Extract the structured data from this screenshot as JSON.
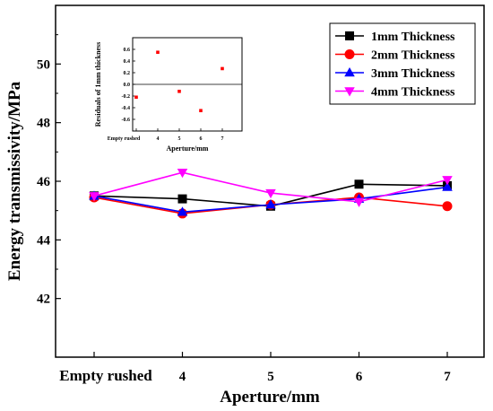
{
  "chart_data": [
    {
      "type": "line",
      "title": "",
      "xlabel": "Aperture/mm",
      "ylabel": "Energy transmissivity/MPa",
      "categories": [
        "Empty rushed",
        "4",
        "5",
        "6",
        "7"
      ],
      "ylim": [
        40,
        52
      ],
      "yticks": [
        42,
        44,
        46,
        48,
        50
      ],
      "grid": false,
      "legend_position": "top-right",
      "series": [
        {
          "name": "1mm Thickness",
          "values": [
            45.5,
            45.4,
            45.15,
            45.9,
            45.85
          ],
          "color": "#000000",
          "marker": "square"
        },
        {
          "name": "2mm Thickness",
          "values": [
            45.45,
            44.9,
            45.2,
            45.45,
            45.15
          ],
          "color": "#ff0000",
          "marker": "circle"
        },
        {
          "name": "3mm Thickness",
          "values": [
            45.5,
            44.95,
            45.2,
            45.4,
            45.8
          ],
          "color": "#0000ff",
          "marker": "triangle-up"
        },
        {
          "name": "4mm Thickness",
          "values": [
            45.5,
            46.3,
            45.6,
            45.3,
            46.05
          ],
          "color": "#ff00ff",
          "marker": "triangle-down"
        }
      ]
    },
    {
      "type": "scatter",
      "title": "",
      "xlabel": "Aperture/mm",
      "ylabel": "Residuals of 1mm thickness",
      "categories": [
        "Empty rushed",
        "4",
        "5",
        "6",
        "7"
      ],
      "ylim": [
        -0.8,
        0.8
      ],
      "yticks": [
        0.6,
        0.4,
        0.2,
        0.0,
        -0.2,
        -0.4,
        -0.6
      ],
      "ytick_labels": [
        "0.6",
        "0.4",
        "0.2",
        "0.0",
        "-0.2",
        "-0.4",
        "-0.6"
      ],
      "series": [
        {
          "name": "",
          "values": [
            -0.22,
            0.55,
            -0.12,
            -0.45,
            0.27
          ],
          "color": "#ff0000",
          "marker": "square"
        }
      ]
    }
  ]
}
